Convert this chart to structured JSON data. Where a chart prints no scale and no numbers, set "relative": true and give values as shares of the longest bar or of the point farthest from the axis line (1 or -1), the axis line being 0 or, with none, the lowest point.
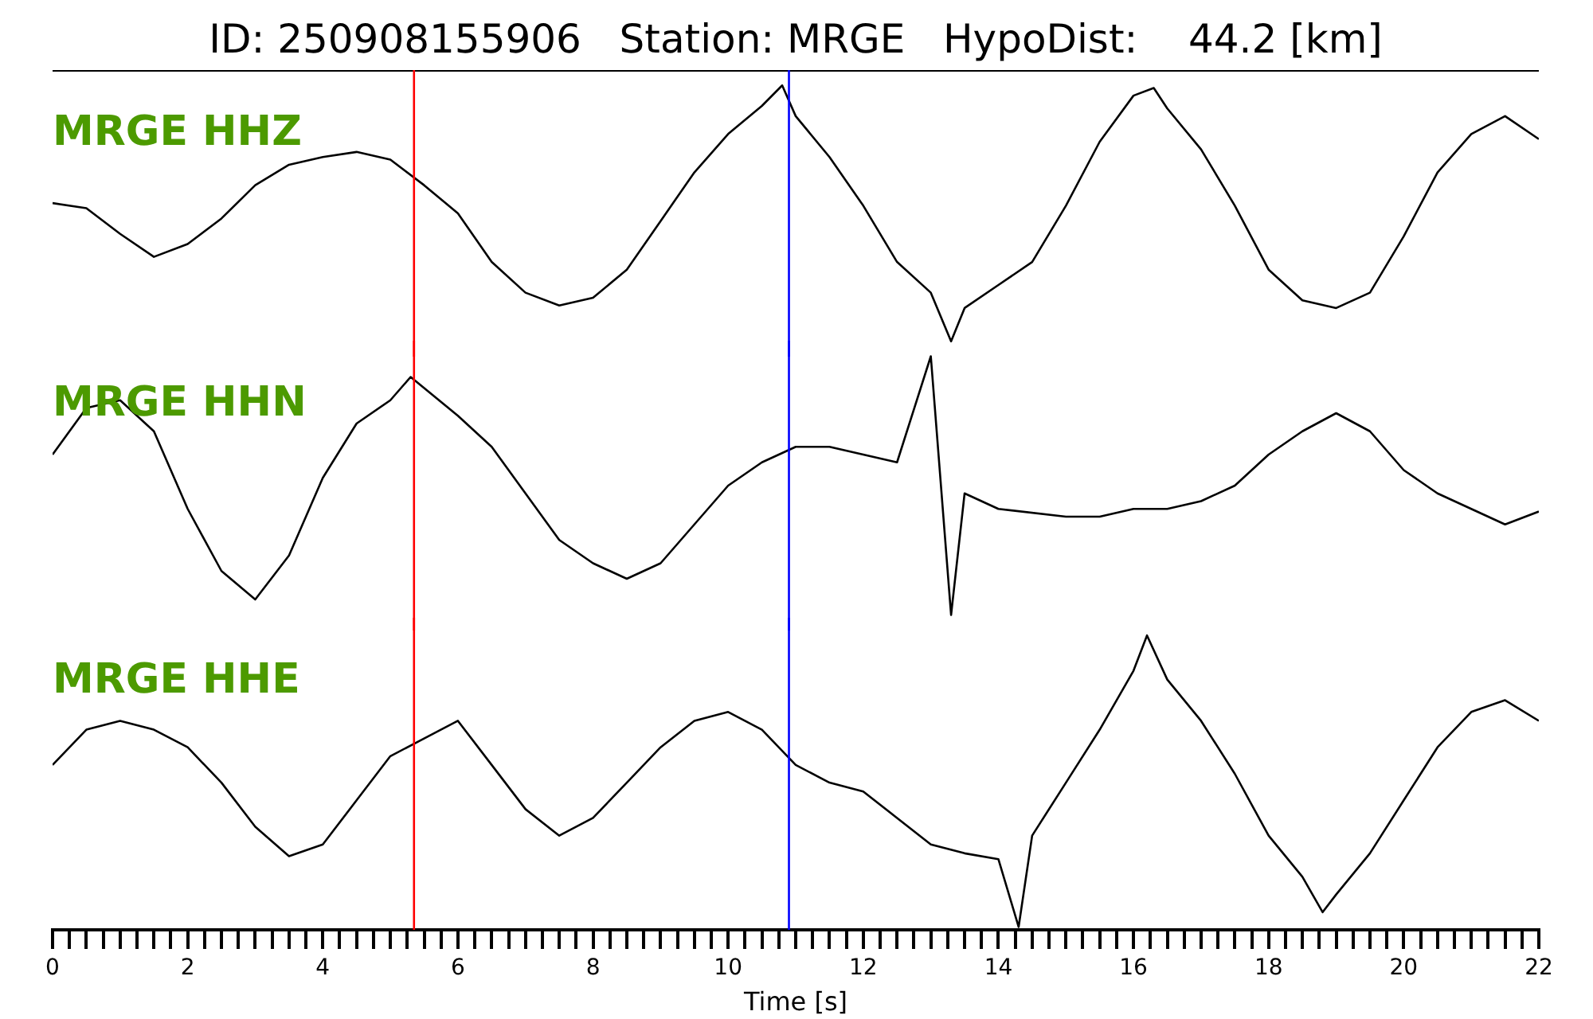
{
  "chart_data": [
    {
      "type": "line",
      "title": "ID: 250908155906   Station: MRGE   HypoDist:    44.2 [km]",
      "relative": true,
      "xlim": [
        0,
        22
      ],
      "tick_labels": false,
      "grid": false,
      "legend": false,
      "marker": "none",
      "ref_lines": [
        {
          "axis": "x",
          "value": 5.35,
          "color": "#ff0000"
        },
        {
          "axis": "x",
          "value": 10.9,
          "color": "#0000ff"
        }
      ],
      "series": [
        {
          "name": "MRGE HHZ",
          "color": "#000000",
          "x": [
            0,
            0.5,
            1,
            1.5,
            2,
            2.5,
            3,
            3.5,
            4,
            4.5,
            5,
            5.5,
            6,
            6.5,
            7,
            7.5,
            8,
            8.5,
            9,
            9.5,
            10,
            10.5,
            10.8,
            11,
            11.5,
            12,
            12.5,
            13,
            13.3,
            13.5,
            14,
            14.5,
            15,
            15.5,
            16,
            16.3,
            16.5,
            17,
            17.5,
            18,
            18.5,
            19,
            19.5,
            20,
            20.5,
            21,
            21.5,
            22
          ],
          "values": [
            0.54,
            0.52,
            0.42,
            0.33,
            0.38,
            0.48,
            0.61,
            0.69,
            0.72,
            0.74,
            0.71,
            0.61,
            0.5,
            0.31,
            0.19,
            0.14,
            0.17,
            0.28,
            0.47,
            0.66,
            0.81,
            0.92,
            1,
            0.88,
            0.72,
            0.53,
            0.31,
            0.19,
            0,
            0.13,
            0.22,
            0.31,
            0.53,
            0.78,
            0.96,
            0.99,
            0.91,
            0.75,
            0.53,
            0.28,
            0.16,
            0.13,
            0.19,
            0.41,
            0.66,
            0.81,
            0.88,
            0.79
          ]
        }
      ]
    },
    {
      "type": "line",
      "relative": true,
      "xlim": [
        0,
        22
      ],
      "tick_labels": false,
      "grid": false,
      "legend": false,
      "marker": "none",
      "ref_lines": [
        {
          "axis": "x",
          "value": 5.35,
          "color": "#ff0000"
        },
        {
          "axis": "x",
          "value": 10.9,
          "color": "#0000ff"
        }
      ],
      "series": [
        {
          "name": "MRGE HHN",
          "color": "#000000",
          "x": [
            0,
            0.5,
            1,
            1.5,
            2,
            2.5,
            3,
            3.5,
            4,
            4.5,
            5,
            5.3,
            6,
            6.5,
            7,
            7.5,
            8,
            8.5,
            9,
            9.5,
            10,
            10.5,
            11,
            11.5,
            12,
            12.5,
            13,
            13.3,
            13.5,
            14,
            15,
            15.5,
            16,
            16.5,
            17,
            17.5,
            18,
            18.5,
            19,
            19.5,
            20,
            20.5,
            21,
            21.5,
            22
          ],
          "values": [
            0.62,
            0.8,
            0.83,
            0.71,
            0.41,
            0.17,
            0.06,
            0.23,
            0.53,
            0.74,
            0.83,
            0.92,
            0.77,
            0.65,
            0.47,
            0.29,
            0.2,
            0.14,
            0.2,
            0.35,
            0.5,
            0.59,
            0.65,
            0.65,
            0.62,
            0.59,
            1,
            0,
            0.47,
            0.41,
            0.38,
            0.38,
            0.41,
            0.41,
            0.44,
            0.5,
            0.62,
            0.71,
            0.78,
            0.71,
            0.56,
            0.47,
            0.41,
            0.35,
            0.4
          ]
        }
      ]
    },
    {
      "type": "line",
      "relative": true,
      "xlabel": "Time [s]",
      "xlim": [
        0,
        22
      ],
      "tick_labels": "x",
      "grid": false,
      "legend": false,
      "marker": "none",
      "xticks": [
        0,
        {
          "value": 0.25,
          "label": null
        },
        {
          "value": 0.5,
          "label": null
        },
        {
          "value": 0.75,
          "label": null
        },
        {
          "value": 1,
          "label": null
        },
        {
          "value": 1.25,
          "label": null
        },
        {
          "value": 1.5,
          "label": null
        },
        {
          "value": 1.75,
          "label": null
        },
        2,
        {
          "value": 2.25,
          "label": null
        },
        {
          "value": 2.5,
          "label": null
        },
        {
          "value": 2.75,
          "label": null
        },
        {
          "value": 3,
          "label": null
        },
        {
          "value": 3.25,
          "label": null
        },
        {
          "value": 3.5,
          "label": null
        },
        {
          "value": 3.75,
          "label": null
        },
        4,
        {
          "value": 4.25,
          "label": null
        },
        {
          "value": 4.5,
          "label": null
        },
        {
          "value": 4.75,
          "label": null
        },
        {
          "value": 5,
          "label": null
        },
        {
          "value": 5.25,
          "label": null
        },
        {
          "value": 5.5,
          "label": null
        },
        {
          "value": 5.75,
          "label": null
        },
        6,
        {
          "value": 6.25,
          "label": null
        },
        {
          "value": 6.5,
          "label": null
        },
        {
          "value": 6.75,
          "label": null
        },
        {
          "value": 7,
          "label": null
        },
        {
          "value": 7.25,
          "label": null
        },
        {
          "value": 7.5,
          "label": null
        },
        {
          "value": 7.75,
          "label": null
        },
        8,
        {
          "value": 8.25,
          "label": null
        },
        {
          "value": 8.5,
          "label": null
        },
        {
          "value": 8.75,
          "label": null
        },
        {
          "value": 9,
          "label": null
        },
        {
          "value": 9.25,
          "label": null
        },
        {
          "value": 9.5,
          "label": null
        },
        {
          "value": 9.75,
          "label": null
        },
        10,
        {
          "value": 10.25,
          "label": null
        },
        {
          "value": 10.5,
          "label": null
        },
        {
          "value": 10.75,
          "label": null
        },
        {
          "value": 11,
          "label": null
        },
        {
          "value": 11.25,
          "label": null
        },
        {
          "value": 11.5,
          "label": null
        },
        {
          "value": 11.75,
          "label": null
        },
        12,
        {
          "value": 12.25,
          "label": null
        },
        {
          "value": 12.5,
          "label": null
        },
        {
          "value": 12.75,
          "label": null
        },
        {
          "value": 13,
          "label": null
        },
        {
          "value": 13.25,
          "label": null
        },
        {
          "value": 13.5,
          "label": null
        },
        {
          "value": 13.75,
          "label": null
        },
        14,
        {
          "value": 14.25,
          "label": null
        },
        {
          "value": 14.5,
          "label": null
        },
        {
          "value": 14.75,
          "label": null
        },
        {
          "value": 15,
          "label": null
        },
        {
          "value": 15.25,
          "label": null
        },
        {
          "value": 15.5,
          "label": null
        },
        {
          "value": 15.75,
          "label": null
        },
        16,
        {
          "value": 16.25,
          "label": null
        },
        {
          "value": 16.5,
          "label": null
        },
        {
          "value": 16.75,
          "label": null
        },
        {
          "value": 17,
          "label": null
        },
        {
          "value": 17.25,
          "label": null
        },
        {
          "value": 17.5,
          "label": null
        },
        {
          "value": 17.75,
          "label": null
        },
        18,
        {
          "value": 18.25,
          "label": null
        },
        {
          "value": 18.5,
          "label": null
        },
        {
          "value": 18.75,
          "label": null
        },
        {
          "value": 19,
          "label": null
        },
        {
          "value": 19.25,
          "label": null
        },
        {
          "value": 19.5,
          "label": null
        },
        {
          "value": 19.75,
          "label": null
        },
        20,
        {
          "value": 20.25,
          "label": null
        },
        {
          "value": 20.5,
          "label": null
        },
        {
          "value": 20.75,
          "label": null
        },
        {
          "value": 21,
          "label": null
        },
        {
          "value": 21.25,
          "label": null
        },
        {
          "value": 21.5,
          "label": null
        },
        {
          "value": 21.75,
          "label": null
        },
        22
      ],
      "ref_lines": [
        {
          "axis": "x",
          "value": 5.35,
          "color": "#ff0000"
        },
        {
          "axis": "x",
          "value": 10.9,
          "color": "#0000ff"
        }
      ],
      "series": [
        {
          "name": "MRGE HHE",
          "color": "#000000",
          "x": [
            0,
            0.5,
            1,
            1.5,
            2,
            2.5,
            3,
            3.5,
            4,
            4.5,
            5,
            5.5,
            6,
            6.5,
            7,
            7.5,
            8,
            8.5,
            9,
            9.5,
            10,
            10.5,
            11,
            11.5,
            12,
            12.5,
            13,
            13.5,
            14,
            14.3,
            14.5,
            15,
            15.5,
            16,
            16.2,
            16.5,
            17,
            17.5,
            18,
            18.5,
            18.8,
            19,
            19.5,
            20,
            20.5,
            21,
            21.5,
            22
          ],
          "values": [
            0.56,
            0.68,
            0.71,
            0.68,
            0.62,
            0.5,
            0.35,
            0.25,
            0.29,
            0.44,
            0.59,
            0.65,
            0.71,
            0.56,
            0.41,
            0.32,
            0.38,
            0.5,
            0.62,
            0.71,
            0.74,
            0.68,
            0.56,
            0.5,
            0.47,
            0.38,
            0.29,
            0.26,
            0.24,
            0.01,
            0.32,
            0.5,
            0.68,
            0.88,
            1,
            0.85,
            0.71,
            0.53,
            0.32,
            0.18,
            0.06,
            0.12,
            0.26,
            0.44,
            0.62,
            0.74,
            0.78,
            0.71
          ]
        }
      ]
    }
  ]
}
